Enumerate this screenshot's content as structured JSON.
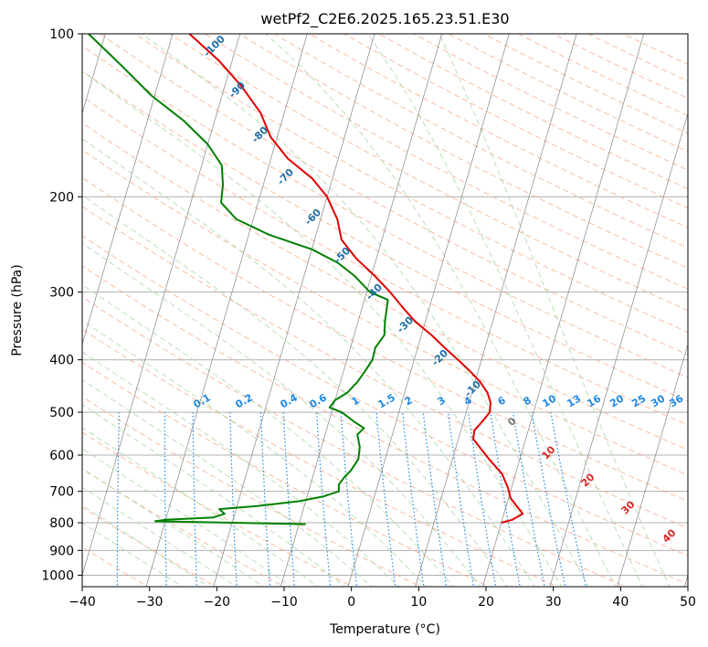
{
  "chart_data": {
    "type": "line",
    "title": "wetPf2_C2E6.2025.165.23.51.E30",
    "xlabel": "Temperature (°C)",
    "ylabel": "Pressure (hPa)",
    "xlim": [
      -40,
      50
    ],
    "ylim": [
      1050,
      100
    ],
    "y_scale": "log",
    "skew": "skew-T",
    "grid": true,
    "x_ticks": [
      "−40",
      "−30",
      "−20",
      "−10",
      "0",
      "10",
      "20",
      "30",
      "40",
      "50"
    ],
    "x_tick_values": [
      -40,
      -30,
      -20,
      -10,
      0,
      10,
      20,
      30,
      40,
      50
    ],
    "y_ticks": [
      "1000",
      "900",
      "800",
      "700",
      "600",
      "500",
      "400",
      "300",
      "200",
      "100"
    ],
    "y_tick_values": [
      1000,
      900,
      800,
      700,
      600,
      500,
      400,
      300,
      200,
      100
    ],
    "series": [
      {
        "color": "#e00000",
        "points": [
          {
            "p": 800,
            "t": 20.0
          },
          {
            "p": 790,
            "t": 21.5
          },
          {
            "p": 770,
            "t": 22.8
          },
          {
            "p": 750,
            "t": 21.8
          },
          {
            "p": 720,
            "t": 20.3
          },
          {
            "p": 690,
            "t": 19.5
          },
          {
            "p": 650,
            "t": 18.0
          },
          {
            "p": 610,
            "t": 15.4
          },
          {
            "p": 580,
            "t": 13.5
          },
          {
            "p": 560,
            "t": 12.2
          },
          {
            "p": 540,
            "t": 12.0
          },
          {
            "p": 520,
            "t": 12.8
          },
          {
            "p": 500,
            "t": 13.5
          },
          {
            "p": 480,
            "t": 13.2
          },
          {
            "p": 460,
            "t": 12.3
          },
          {
            "p": 440,
            "t": 10.8
          },
          {
            "p": 420,
            "t": 8.8
          },
          {
            "p": 400,
            "t": 6.5
          },
          {
            "p": 380,
            "t": 4.0
          },
          {
            "p": 360,
            "t": 1.5
          },
          {
            "p": 340,
            "t": -1.5
          },
          {
            "p": 320,
            "t": -4.0
          },
          {
            "p": 300,
            "t": -6.5
          },
          {
            "p": 280,
            "t": -9.5
          },
          {
            "p": 260,
            "t": -13.0
          },
          {
            "p": 240,
            "t": -16.0
          },
          {
            "p": 220,
            "t": -17.5
          },
          {
            "p": 200,
            "t": -20.0
          },
          {
            "p": 185,
            "t": -23.0
          },
          {
            "p": 170,
            "t": -27.5
          },
          {
            "p": 155,
            "t": -31.0
          },
          {
            "p": 140,
            "t": -33.5
          },
          {
            "p": 125,
            "t": -37.5
          },
          {
            "p": 112,
            "t": -42.0
          },
          {
            "p": 100,
            "t": -47.5
          }
        ]
      },
      {
        "color": "#008000",
        "points": [
          {
            "p": 805,
            "t": -9.0
          },
          {
            "p": 800,
            "t": -20.0
          },
          {
            "p": 795,
            "t": -31.5
          },
          {
            "p": 790,
            "t": -30.0
          },
          {
            "p": 782,
            "t": -23.0
          },
          {
            "p": 770,
            "t": -21.5
          },
          {
            "p": 755,
            "t": -22.5
          },
          {
            "p": 745,
            "t": -17.0
          },
          {
            "p": 730,
            "t": -11.0
          },
          {
            "p": 715,
            "t": -7.5
          },
          {
            "p": 700,
            "t": -5.5
          },
          {
            "p": 680,
            "t": -5.8
          },
          {
            "p": 660,
            "t": -5.3
          },
          {
            "p": 640,
            "t": -4.6
          },
          {
            "p": 610,
            "t": -4.0
          },
          {
            "p": 580,
            "t": -4.3
          },
          {
            "p": 550,
            "t": -5.2
          },
          {
            "p": 535,
            "t": -4.5
          },
          {
            "p": 520,
            "t": -6.3
          },
          {
            "p": 500,
            "t": -8.5
          },
          {
            "p": 490,
            "t": -10.5
          },
          {
            "p": 475,
            "t": -10.0
          },
          {
            "p": 460,
            "t": -8.5
          },
          {
            "p": 440,
            "t": -7.5
          },
          {
            "p": 420,
            "t": -6.8
          },
          {
            "p": 400,
            "t": -6.2
          },
          {
            "p": 380,
            "t": -6.3
          },
          {
            "p": 360,
            "t": -5.5
          },
          {
            "p": 340,
            "t": -6.0
          },
          {
            "p": 310,
            "t": -6.5
          },
          {
            "p": 300,
            "t": -9.5
          },
          {
            "p": 280,
            "t": -12.5
          },
          {
            "p": 265,
            "t": -15.5
          },
          {
            "p": 250,
            "t": -20.0
          },
          {
            "p": 235,
            "t": -27.0
          },
          {
            "p": 220,
            "t": -32.5
          },
          {
            "p": 205,
            "t": -35.5
          },
          {
            "p": 190,
            "t": -36.0
          },
          {
            "p": 175,
            "t": -37.0
          },
          {
            "p": 160,
            "t": -40.0
          },
          {
            "p": 145,
            "t": -44.5
          },
          {
            "p": 130,
            "t": -50.5
          },
          {
            "p": 115,
            "t": -56.0
          },
          {
            "p": 100,
            "t": -62.5
          }
        ]
      }
    ],
    "mixing_ratio_labels": [
      "0.1",
      "0.2",
      "0.4",
      "0.6",
      "1",
      "1.5",
      "2",
      "3",
      "4",
      "6",
      "8",
      "10",
      "13",
      "16",
      "20",
      "25",
      "30",
      "36"
    ],
    "mixing_ratio_values": [
      0.1,
      0.2,
      0.4,
      0.6,
      1,
      1.5,
      2,
      3,
      4,
      6,
      8,
      10,
      13,
      16,
      20,
      25,
      30,
      36
    ],
    "dry_adiabat_labels": [
      "-100",
      "-90",
      "-80",
      "-70",
      "-60",
      "-50",
      "-40",
      "-30",
      "-20",
      "-10"
    ],
    "dry_adiabat_values": [
      -100,
      -90,
      -80,
      -70,
      -60,
      -50,
      -40,
      -30,
      -20,
      -10
    ],
    "moist_adiabat_labels": [
      "0",
      "10",
      "20",
      "30",
      "40"
    ],
    "moist_adiabat_values": [
      0,
      10,
      20,
      30,
      40
    ],
    "colors": {
      "temperature": "#e00000",
      "dewpoint": "#008000",
      "dry_adiabat": "#f4a582",
      "moist_adiabat": "#a6d8a0",
      "mixing_ratio": "#1e88e5",
      "isotherm": "#888888",
      "dry_label": "#1f6fa8",
      "mixing_label": "#1e88e5",
      "moist_label": "#d62728"
    }
  }
}
